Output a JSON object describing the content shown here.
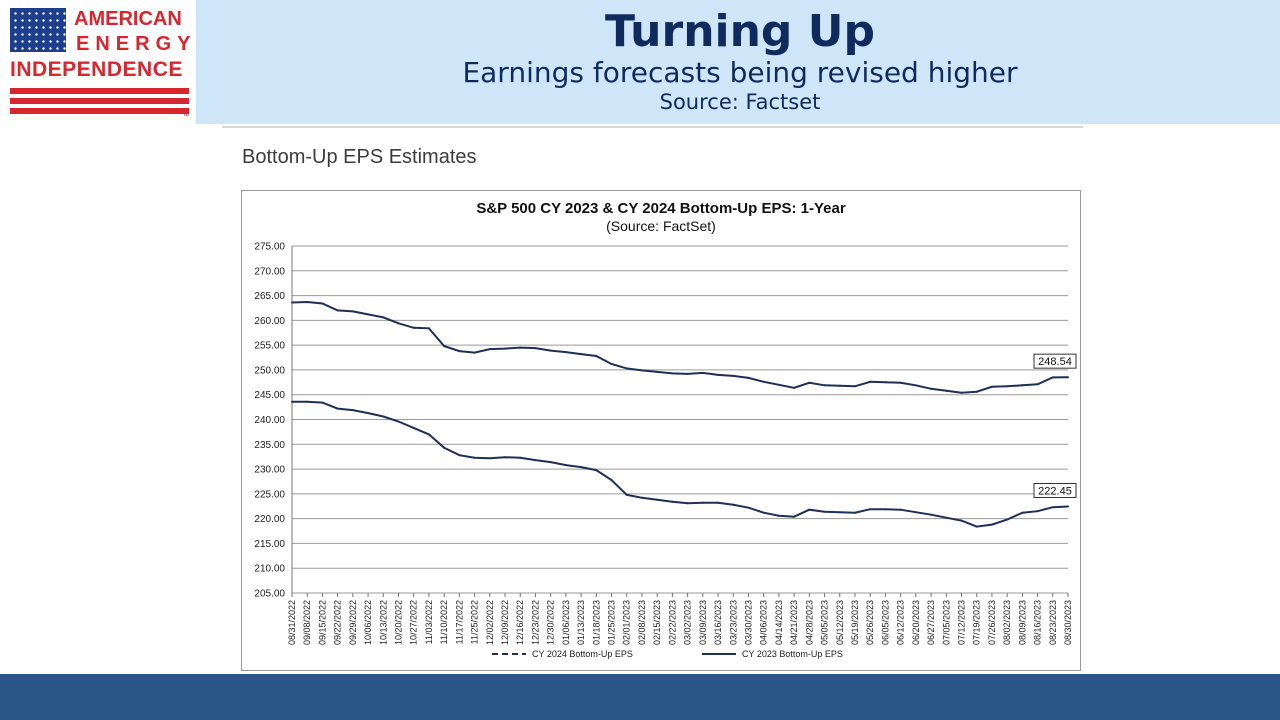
{
  "header": {
    "logo_lines": [
      "AMERICAN",
      "ENERGY",
      "INDEPENDENCE"
    ],
    "title": "Turning Up",
    "subtitle": "Earnings forecasts being revised higher",
    "source": "Source: Factset"
  },
  "section_title": "Bottom-Up EPS Estimates",
  "chart_data": {
    "type": "line",
    "title": "S&P 500 CY 2023 & CY 2024 Bottom-Up EPS: 1-Year",
    "subtitle": "(Source: FactSet)",
    "ylim": [
      205,
      275
    ],
    "y_ticks": [
      "205.00",
      "210.00",
      "215.00",
      "220.00",
      "225.00",
      "230.00",
      "235.00",
      "240.00",
      "245.00",
      "250.00",
      "255.00",
      "260.00",
      "265.00",
      "270.00",
      "275.00"
    ],
    "x_ticks": [
      "08/31/2022",
      "09/08/2022",
      "09/15/2022",
      "09/22/2022",
      "09/29/2022",
      "10/06/2022",
      "10/13/2022",
      "10/20/2022",
      "10/27/2022",
      "11/03/2022",
      "11/10/2022",
      "11/17/2022",
      "11/25/2022",
      "12/02/2022",
      "12/09/2022",
      "12/16/2022",
      "12/23/2022",
      "12/30/2022",
      "01/06/2023",
      "01/13/2023",
      "01/18/2023",
      "01/25/2023",
      "02/01/2023",
      "02/08/2023",
      "02/15/2023",
      "02/22/2023",
      "03/02/2023",
      "03/09/2023",
      "03/16/2023",
      "03/23/2023",
      "03/30/2023",
      "04/06/2023",
      "04/14/2023",
      "04/21/2023",
      "04/28/2023",
      "05/05/2023",
      "05/12/2023",
      "05/19/2023",
      "05/26/2023",
      "06/05/2023",
      "06/12/2023",
      "06/20/2023",
      "06/27/2023",
      "07/05/2023",
      "07/12/2023",
      "07/19/2023",
      "07/26/2023",
      "08/02/2023",
      "08/09/2023",
      "08/16/2023",
      "08/23/2023",
      "08/30/2023"
    ],
    "grid": true,
    "legend_position": "bottom",
    "series": [
      {
        "name": "CY 2024 Bottom-Up EPS",
        "style": "dashed",
        "color": "#1f2f55",
        "end_label": "248.54",
        "values": [
          263.6,
          263.7,
          263.4,
          262.0,
          261.8,
          261.2,
          260.6,
          259.4,
          258.5,
          258.4,
          254.8,
          253.8,
          253.5,
          254.2,
          254.3,
          254.5,
          254.4,
          253.9,
          253.6,
          253.2,
          252.8,
          251.2,
          250.3,
          249.9,
          249.6,
          249.3,
          249.2,
          249.4,
          249.0,
          248.8,
          248.4,
          247.6,
          247.0,
          246.4,
          247.4,
          246.9,
          246.8,
          246.7,
          247.6,
          247.5,
          247.4,
          246.9,
          246.2,
          245.8,
          245.4,
          245.6,
          246.6,
          246.7,
          246.9,
          247.1,
          248.5,
          248.54
        ]
      },
      {
        "name": "CY 2023 Bottom-Up EPS",
        "style": "solid",
        "color": "#1f2f55",
        "end_label": "222.45",
        "values": [
          243.6,
          243.6,
          243.4,
          242.2,
          241.9,
          241.3,
          240.6,
          239.6,
          238.3,
          237.0,
          234.3,
          232.8,
          232.3,
          232.2,
          232.4,
          232.3,
          231.8,
          231.4,
          230.8,
          230.4,
          229.8,
          227.8,
          224.8,
          224.2,
          223.8,
          223.4,
          223.1,
          223.2,
          223.2,
          222.8,
          222.2,
          221.2,
          220.6,
          220.4,
          221.8,
          221.4,
          221.3,
          221.2,
          221.9,
          221.9,
          221.8,
          221.3,
          220.8,
          220.2,
          219.6,
          218.4,
          218.8,
          219.8,
          221.2,
          221.5,
          222.3,
          222.45
        ]
      }
    ]
  },
  "colors": {
    "header_bg": "#cfe6f8",
    "title_color": "#0f2a5c",
    "footer_bg": "#2a5587",
    "logo_red": "#d8262f",
    "logo_blue": "#1d3e8a"
  }
}
